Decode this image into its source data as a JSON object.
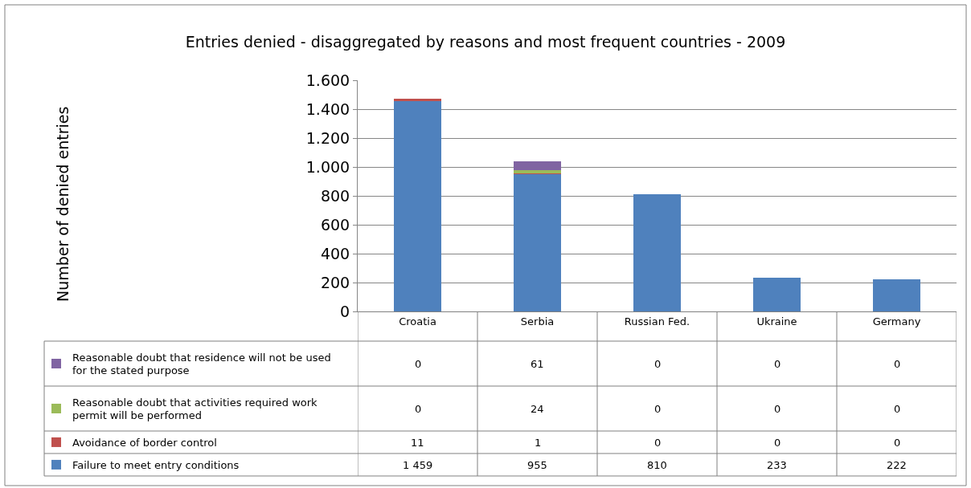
{
  "chart_data": {
    "type": "bar",
    "stacked": true,
    "title": "Entries denied - disaggregated by reasons and most frequent countries - 2009",
    "annotations": [
      "Number of denied entries"
    ],
    "categories": [
      "Croatia",
      "Serbia",
      "Russian Fed.",
      "Ukraine",
      "Germany"
    ],
    "series": [
      {
        "name": "Failure to meet entry conditions",
        "color": "#4f81bd",
        "values": [
          1459,
          955,
          810,
          233,
          222
        ],
        "value_labels": [
          "1 459",
          "955",
          "810",
          "233",
          "222"
        ]
      },
      {
        "name": "Avoidance of border control",
        "color": "#c0504d",
        "values": [
          11,
          1,
          0,
          0,
          0
        ],
        "value_labels": [
          "11",
          "1",
          "0",
          "0",
          "0"
        ]
      },
      {
        "name": "Reasonable doubt that activities required work permit will be performed",
        "color": "#9bbb59",
        "values": [
          0,
          24,
          0,
          0,
          0
        ],
        "value_labels": [
          "0",
          "24",
          "0",
          "0",
          "0"
        ]
      },
      {
        "name": "Reasonable doubt that residence will not be used for the stated purpose",
        "color": "#8064a2",
        "values": [
          0,
          61,
          0,
          0,
          0
        ],
        "value_labels": [
          "0",
          "61",
          "0",
          "0",
          "0"
        ]
      }
    ],
    "ylim": [
      0,
      1600
    ],
    "yticks": [
      {
        "value": 0,
        "label": "0"
      },
      {
        "value": 200,
        "label": "200"
      },
      {
        "value": 400,
        "label": "400"
      },
      {
        "value": 600,
        "label": "600"
      },
      {
        "value": 800,
        "label": "800"
      },
      {
        "value": 1000,
        "label": "1.000"
      },
      {
        "value": 1200,
        "label": "1.200"
      },
      {
        "value": 1400,
        "label": "1.400"
      },
      {
        "value": 1600,
        "label": "1.600"
      }
    ],
    "grid": "y",
    "legend": "bottom left"
  }
}
